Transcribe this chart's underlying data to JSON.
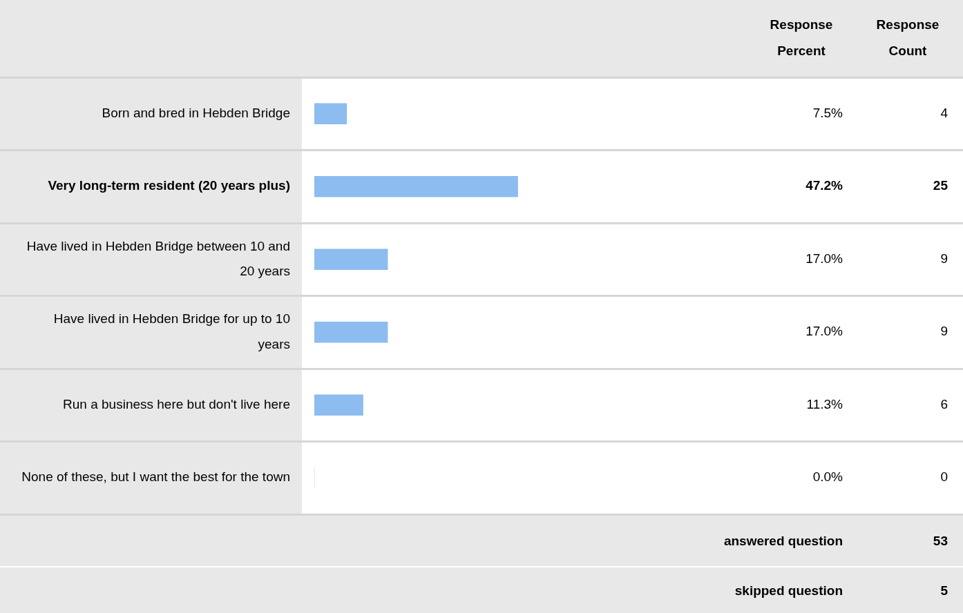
{
  "chart_data": {
    "type": "bar",
    "orientation": "horizontal",
    "categories": [
      "Born and bred in Hebden Bridge",
      "Very long-term resident (20 years plus)",
      "Have lived in Hebden Bridge between 10 and 20 years",
      "Have lived in Hebden Bridge for up to 10 years",
      "Run a business here but don't live here",
      "None of these, but I want the best for the town"
    ],
    "values": [
      7.5,
      47.2,
      17.0,
      17.0,
      11.3,
      0.0
    ],
    "value_labels": [
      "7.5%",
      "47.2%",
      "17.0%",
      "17.0%",
      "11.3%",
      "0.0%"
    ],
    "color": "#8cbcf0",
    "tick_labels": "y",
    "annotations": [
      "Response Percent",
      "Response Count",
      "4",
      "25",
      "9",
      "9",
      "6",
      "0",
      "answered question",
      "53",
      "skipped question",
      "5"
    ]
  }
}
